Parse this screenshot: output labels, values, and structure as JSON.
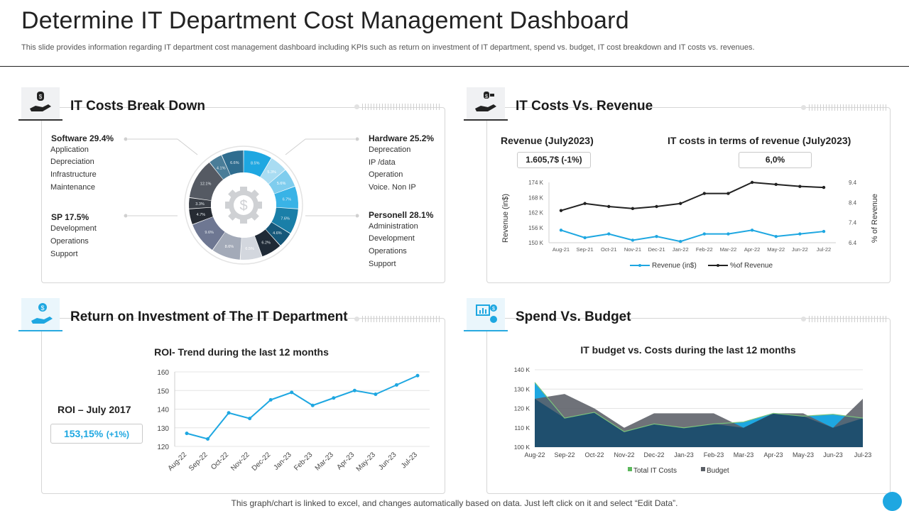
{
  "header": {
    "title": "Determine IT Department Cost Management Dashboard",
    "subtitle": "This slide provides information regarding IT department cost management dashboard including KPIs such as return on investment of IT  department, spend vs. budget, IT cost breakdown and IT costs vs. revenues."
  },
  "breakdown": {
    "title": "IT Costs Break Down",
    "software": {
      "head": "Software 29.4%",
      "items": [
        "Application",
        "Depreciation",
        "Infrastructure",
        "Maintenance"
      ]
    },
    "sp": {
      "head": "SP 17.5%",
      "items": [
        "Development",
        "Operations",
        "Support"
      ]
    },
    "hardware": {
      "head": "Hardware 25.2%",
      "items": [
        "Deprecation",
        "IP /data",
        "Operation",
        "Voice. Non IP"
      ]
    },
    "personell": {
      "head": "Personell 28.1%",
      "items": [
        "Administration",
        "Development",
        "Operations",
        "Support"
      ]
    },
    "center_icon": "dollar-gear-icon"
  },
  "revenue": {
    "title": "IT Costs Vs. Revenue",
    "left_kpi_label": "Revenue (July2023)",
    "left_kpi_value": "1.605,7$ (-1%)",
    "right_kpi_label": "IT costs in terms of revenue (July2023)",
    "right_kpi_value": "6,0%"
  },
  "roi": {
    "title": "Return on Investment of The IT Department",
    "kpi_label": "ROI – July 2017",
    "kpi_value": "153,15%",
    "kpi_change": "(+1%)"
  },
  "spend": {
    "title": "Spend Vs. Budget"
  },
  "footer": {
    "note": "This graph/chart is linked to excel,  and changes automatically based on data. Just left click on it and select “Edit Data”."
  },
  "colors": {
    "accent": "#1ea7e1",
    "dark": "#222222",
    "navy": "#1f4f6e",
    "gray": "#666666",
    "green": "#5cb85c"
  },
  "chart_data": [
    {
      "id": "cost-breakdown",
      "type": "pie",
      "title": "IT Costs Break Down",
      "slices": [
        {
          "label": "8.5%",
          "value": 8.5,
          "color": "#1ea7e1"
        },
        {
          "label": "5.3%",
          "value": 5.3,
          "color": "#a9dcf2"
        },
        {
          "label": "5.6%",
          "value": 5.6,
          "color": "#7fcdee"
        },
        {
          "label": "6.7%",
          "value": 6.7,
          "color": "#39b3e6"
        },
        {
          "label": "7.6%",
          "value": 7.6,
          "color": "#1a7fa8"
        },
        {
          "label": "4.6%",
          "value": 4.6,
          "color": "#16587a"
        },
        {
          "label": "6.2%",
          "value": 6.2,
          "color": "#1f2a36"
        },
        {
          "label": "6.5%",
          "value": 6.5,
          "color": "#d3d7de"
        },
        {
          "label": "8.6%",
          "value": 8.6,
          "color": "#a3aab8"
        },
        {
          "label": "9.6%",
          "value": 9.6,
          "color": "#6e7792"
        },
        {
          "label": "4.7%",
          "value": 4.7,
          "color": "#262b33"
        },
        {
          "label": "3.3%",
          "value": 3.3,
          "color": "#3a3f47"
        },
        {
          "label": "12.1%",
          "value": 12.1,
          "color": "#555a63"
        },
        {
          "label": "4.1%",
          "value": 4.1,
          "color": "#4a7d98"
        },
        {
          "label": "6.6%",
          "value": 6.6,
          "color": "#2f6d8f"
        }
      ]
    },
    {
      "id": "it-costs-vs-revenue",
      "type": "line",
      "categories": [
        "Aug-21",
        "Sep-21",
        "Oct-21",
        "Nov-21",
        "Dec-21",
        "Jan-22",
        "Feb-22",
        "Mar-22",
        "Apr-22",
        "May-22",
        "Jun-22",
        "Jul-22"
      ],
      "series": [
        {
          "name": "Revenue (in$)",
          "axis": "left",
          "color": "#1ea7e1",
          "values": [
            155,
            152,
            153.5,
            151,
            152.5,
            150.5,
            153.5,
            153.5,
            155,
            152.5,
            153.5,
            154.5
          ]
        },
        {
          "name": "%of Revenue",
          "axis": "right",
          "color": "#222222",
          "values": [
            8.0,
            8.35,
            8.2,
            8.1,
            8.2,
            8.35,
            8.85,
            8.85,
            9.4,
            9.3,
            9.2,
            9.15
          ]
        }
      ],
      "ylabel": "Revenue  (in$)",
      "y2label": "% of Revenue",
      "yticks": [
        "174 K",
        "168 K",
        "162 K",
        "156 K",
        "150 K"
      ],
      "ylim": [
        150,
        174
      ],
      "y2ticks": [
        "9.4",
        "8.4",
        "7.4",
        "6.4"
      ],
      "y2lim": [
        6.4,
        9.4
      ]
    },
    {
      "id": "roi-trend",
      "type": "line",
      "title": "ROI- Trend during the last 12 months",
      "categories": [
        "Aug-22",
        "Sep-22",
        "Oct-22",
        "Nov-22",
        "Dec-22",
        "Jan-23",
        "Feb-23",
        "Mar-23",
        "Apr-23",
        "May-23",
        "Jun-23",
        "Jul-23"
      ],
      "series": [
        {
          "name": "ROI",
          "color": "#1ea7e1",
          "values": [
            127,
            124,
            138,
            135,
            145,
            149,
            142,
            146,
            150,
            148,
            153,
            158
          ]
        }
      ],
      "yticks": [
        160,
        150,
        140,
        130,
        120
      ],
      "ylim": [
        120,
        160
      ]
    },
    {
      "id": "budget-vs-costs",
      "type": "area",
      "title": "IT budget vs. Costs during the last 12 months",
      "categories": [
        "Aug-22",
        "Sep-22",
        "Oct-22",
        "Nov-22",
        "Dec-22",
        "Jan-23",
        "Feb-23",
        "Mar-23",
        "Apr-23",
        "May-23",
        "Jun-23",
        "Jul-23"
      ],
      "series": [
        {
          "name": "Budget",
          "color": "#5b5f66",
          "values": [
            125,
            127.5,
            120,
            110,
            117.5,
            117.5,
            117.5,
            110,
            117.5,
            117.5,
            110,
            125
          ]
        },
        {
          "name": "Total IT Costs",
          "color": "#5cb85c",
          "values": [
            133.5,
            115,
            118,
            108,
            112,
            110,
            112,
            113,
            117.5,
            116,
            117,
            115
          ]
        }
      ],
      "yticks": [
        "140 K",
        "130 K",
        "120 K",
        "110 K",
        "100 K"
      ],
      "ylim": [
        100,
        140
      ],
      "legend": [
        "Total IT Costs",
        "Budget"
      ]
    }
  ]
}
